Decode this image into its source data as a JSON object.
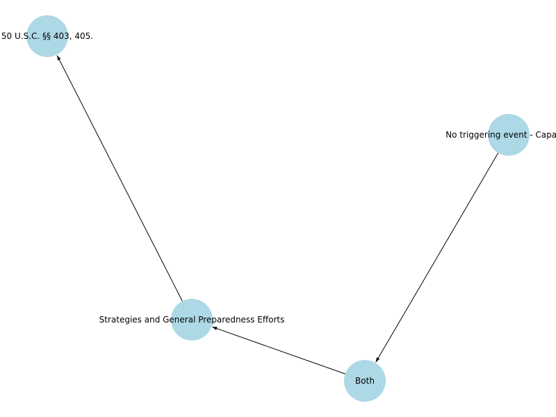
{
  "diagram": {
    "nodes": [
      {
        "id": "n1",
        "label": "50 U.S.C. §§ 403, 405."
      },
      {
        "id": "n2",
        "label": "No triggering event - Capacity"
      },
      {
        "id": "n3",
        "label": "Strategies and General Preparedness Efforts"
      },
      {
        "id": "n4",
        "label": "Both"
      }
    ],
    "edges": [
      {
        "from": "n2",
        "to": "n4"
      },
      {
        "from": "n4",
        "to": "n3"
      },
      {
        "from": "n3",
        "to": "n1"
      }
    ],
    "colors": {
      "node_fill": "#add8e6",
      "edge": "#000000",
      "label": "#000000",
      "background": "#ffffff"
    }
  }
}
